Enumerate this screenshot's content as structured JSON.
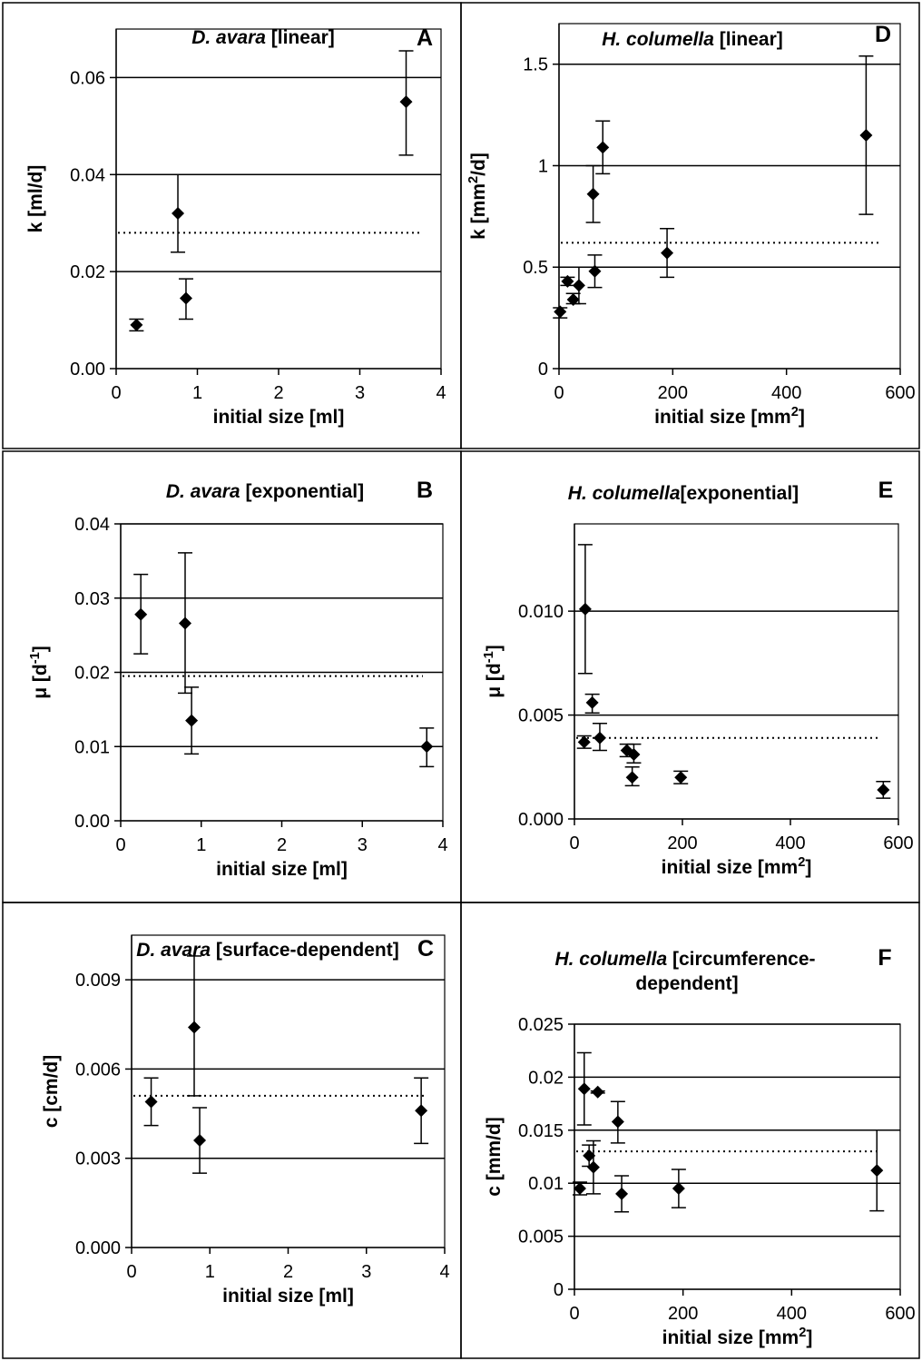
{
  "chart_data": [
    {
      "type": "scatter",
      "letter": "A",
      "title_italic": "D. avara",
      "title_rest": " [linear]",
      "xlabel": "initial size [ml]",
      "ylabel": "k [ml/d]",
      "xlim": [
        0,
        4
      ],
      "ylim": [
        0,
        0.07
      ],
      "xticks": [
        "0",
        "1",
        "2",
        "3",
        "4"
      ],
      "yticks": [
        "0.00",
        "0.02",
        "0.04",
        "0.06"
      ],
      "grid": "horizontal",
      "mean_line": 0.028,
      "points": [
        {
          "x": 0.25,
          "y": 0.009,
          "lo": 0.0078,
          "hi": 0.0102
        },
        {
          "x": 0.76,
          "y": 0.032,
          "lo": 0.024,
          "hi": 0.04
        },
        {
          "x": 0.86,
          "y": 0.0145,
          "lo": 0.0102,
          "hi": 0.0185
        },
        {
          "x": 3.57,
          "y": 0.055,
          "lo": 0.044,
          "hi": 0.0655
        }
      ]
    },
    {
      "type": "scatter",
      "letter": "B",
      "title_italic": "D. avara",
      "title_rest": " [exponential]",
      "xlabel": "initial size [ml]",
      "ylabel": "μ [d⁻¹]",
      "xlim": [
        0,
        4
      ],
      "ylim": [
        0,
        0.04
      ],
      "xticks": [
        "0",
        "1",
        "2",
        "3",
        "4"
      ],
      "yticks": [
        "0.00",
        "0.01",
        "0.02",
        "0.03",
        "0.04"
      ],
      "grid": "horizontal",
      "mean_line": 0.0195,
      "points": [
        {
          "x": 0.25,
          "y": 0.0278,
          "lo": 0.0225,
          "hi": 0.0332
        },
        {
          "x": 0.8,
          "y": 0.0266,
          "lo": 0.0172,
          "hi": 0.0361
        },
        {
          "x": 0.88,
          "y": 0.0135,
          "lo": 0.009,
          "hi": 0.018
        },
        {
          "x": 3.8,
          "y": 0.01,
          "lo": 0.0073,
          "hi": 0.0125
        }
      ]
    },
    {
      "type": "scatter",
      "letter": "C",
      "title_italic": "D. avara",
      "title_rest": " [surface-dependent]",
      "xlabel": "initial size [ml]",
      "ylabel": "c [cm/d]",
      "xlim": [
        0,
        4
      ],
      "ylim": [
        0,
        0.0105
      ],
      "xticks": [
        "0",
        "1",
        "2",
        "3",
        "4"
      ],
      "yticks": [
        "0.000",
        "0.003",
        "0.006",
        "0.009"
      ],
      "grid": "horizontal",
      "mean_line": 0.0051,
      "points": [
        {
          "x": 0.25,
          "y": 0.0049,
          "lo": 0.0041,
          "hi": 0.0057
        },
        {
          "x": 0.8,
          "y": 0.0074,
          "lo": 0.0051,
          "hi": 0.0098
        },
        {
          "x": 0.87,
          "y": 0.0036,
          "lo": 0.0025,
          "hi": 0.0047
        },
        {
          "x": 3.7,
          "y": 0.0046,
          "lo": 0.0035,
          "hi": 0.0057
        }
      ]
    },
    {
      "type": "scatter",
      "letter": "D",
      "title_italic": "H. columella",
      "title_rest": " [linear]",
      "xlabel": "initial size [mm²]",
      "ylabel": "k [mm²/d]",
      "xlim": [
        0,
        600
      ],
      "ylim": [
        0,
        1.7
      ],
      "xticks": [
        "0",
        "200",
        "400",
        "600"
      ],
      "yticks": [
        "0",
        "0.5",
        "1",
        "1.5"
      ],
      "grid": "horizontal",
      "mean_line": 0.62,
      "points": [
        {
          "x": 2,
          "y": 0.28,
          "lo": 0.25,
          "hi": 0.3
        },
        {
          "x": 15,
          "y": 0.43,
          "lo": 0.41,
          "hi": 0.45
        },
        {
          "x": 25,
          "y": 0.34,
          "lo": 0.32,
          "hi": 0.37
        },
        {
          "x": 35,
          "y": 0.41,
          "lo": 0.32,
          "hi": 0.5
        },
        {
          "x": 60,
          "y": 0.86,
          "lo": 0.72,
          "hi": 1.0
        },
        {
          "x": 63,
          "y": 0.48,
          "lo": 0.4,
          "hi": 0.56
        },
        {
          "x": 77,
          "y": 1.09,
          "lo": 0.96,
          "hi": 1.22
        },
        {
          "x": 190,
          "y": 0.57,
          "lo": 0.45,
          "hi": 0.69
        },
        {
          "x": 540,
          "y": 1.15,
          "lo": 0.76,
          "hi": 1.54
        }
      ]
    },
    {
      "type": "scatter",
      "letter": "E",
      "title_italic": "H. columella",
      "title_rest": "[exponential]",
      "xlabel": "initial size [mm²]",
      "ylabel": "μ [d⁻¹]",
      "xlim": [
        0,
        600
      ],
      "ylim": [
        0,
        0.0142
      ],
      "xticks": [
        "0",
        "200",
        "400",
        "600"
      ],
      "yticks": [
        "0.000",
        "0.005",
        "0.010"
      ],
      "grid": "horizontal",
      "mean_line": 0.0039,
      "points": [
        {
          "x": 18,
          "y": 0.0037,
          "lo": 0.0034,
          "hi": 0.004
        },
        {
          "x": 20,
          "y": 0.0101,
          "lo": 0.007,
          "hi": 0.0132
        },
        {
          "x": 33,
          "y": 0.0056,
          "lo": 0.0051,
          "hi": 0.006
        },
        {
          "x": 47,
          "y": 0.0039,
          "lo": 0.0033,
          "hi": 0.0046
        },
        {
          "x": 97,
          "y": 0.0033,
          "lo": 0.003,
          "hi": 0.0036
        },
        {
          "x": 107,
          "y": 0.002,
          "lo": 0.0016,
          "hi": 0.0025
        },
        {
          "x": 110,
          "y": 0.0031,
          "lo": 0.0027,
          "hi": 0.0036
        },
        {
          "x": 197,
          "y": 0.002,
          "lo": 0.0017,
          "hi": 0.0023
        },
        {
          "x": 572,
          "y": 0.0014,
          "lo": 0.001,
          "hi": 0.0018
        }
      ]
    },
    {
      "type": "scatter",
      "letter": "F",
      "title_italic": "H. columella",
      "title_rest": " [circumference-",
      "title_line2": "dependent]",
      "xlabel": "initial size [mm²]",
      "ylabel": "c [mm/d]",
      "xlim": [
        0,
        600
      ],
      "ylim": [
        0,
        0.025
      ],
      "xticks": [
        "0",
        "200",
        "400",
        "600"
      ],
      "yticks": [
        "0",
        "0.005",
        "0.01",
        "0.015",
        "0.02",
        "0.025"
      ],
      "grid": "horizontal",
      "mean_line": 0.013,
      "points": [
        {
          "x": 10,
          "y": 0.0095,
          "lo": 0.0089,
          "hi": 0.0101
        },
        {
          "x": 18,
          "y": 0.0189,
          "lo": 0.0155,
          "hi": 0.0223
        },
        {
          "x": 27,
          "y": 0.0126,
          "lo": 0.0116,
          "hi": 0.0136
        },
        {
          "x": 35,
          "y": 0.0115,
          "lo": 0.009,
          "hi": 0.014
        },
        {
          "x": 43,
          "y": 0.0186,
          "lo": 0.0185,
          "hi": 0.0187
        },
        {
          "x": 80,
          "y": 0.0158,
          "lo": 0.0138,
          "hi": 0.0177
        },
        {
          "x": 87,
          "y": 0.009,
          "lo": 0.0073,
          "hi": 0.0107
        },
        {
          "x": 192,
          "y": 0.0095,
          "lo": 0.0077,
          "hi": 0.0113
        },
        {
          "x": 557,
          "y": 0.0112,
          "lo": 0.0074,
          "hi": 0.015
        }
      ]
    }
  ]
}
